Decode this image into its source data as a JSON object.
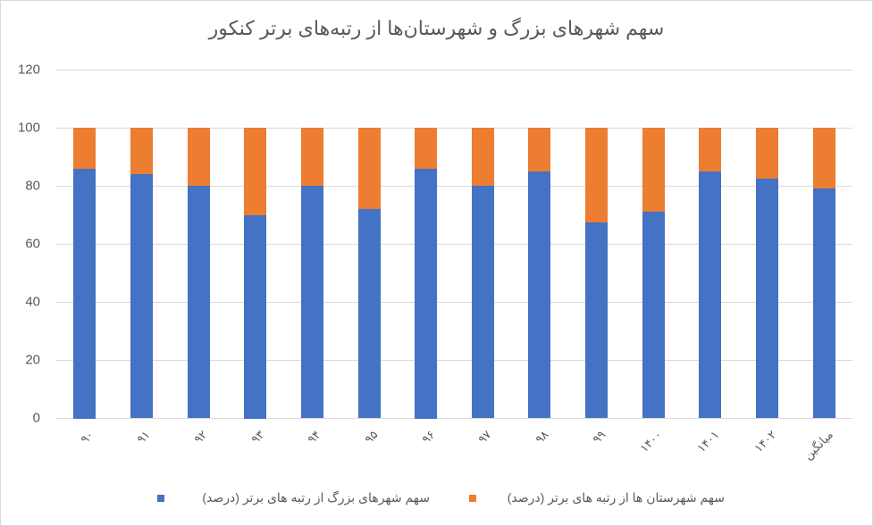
{
  "chart_data": {
    "type": "bar",
    "stacked": true,
    "title": "سهم شهرهای بزرگ و شهرستان‌ها از رتبه‌های برتر کنکور",
    "xlabel": "",
    "ylabel": "",
    "ylim": [
      0,
      120
    ],
    "yticks": [
      "0",
      "20",
      "40",
      "60",
      "80",
      "100",
      "120"
    ],
    "grid": true,
    "legend_position": "bottom",
    "categories": [
      "۹۰",
      "۹۱",
      "۹۲",
      "۹۳",
      "۹۴",
      "۹۵",
      "۹۶",
      "۹۷",
      "۹۸",
      "۹۹",
      "۱۴۰۰",
      "۱۴۰۱",
      "۱۴۰۲",
      "میانگین"
    ],
    "series": [
      {
        "name": "سهم شهرهای بزرگ از رتبه های برتر (درصد)",
        "color": "#4472c4",
        "values": [
          86,
          84,
          80,
          70,
          80,
          72,
          86,
          80,
          85,
          67.5,
          71,
          85,
          82.5,
          79.1
        ]
      },
      {
        "name": "سهم شهرستان ها از رتبه های برتر (درصد)",
        "color": "#ed7d31",
        "values": [
          14,
          16,
          20,
          30,
          20,
          28,
          14,
          20,
          15,
          32.5,
          29,
          15,
          17.5,
          20.9
        ]
      }
    ]
  }
}
